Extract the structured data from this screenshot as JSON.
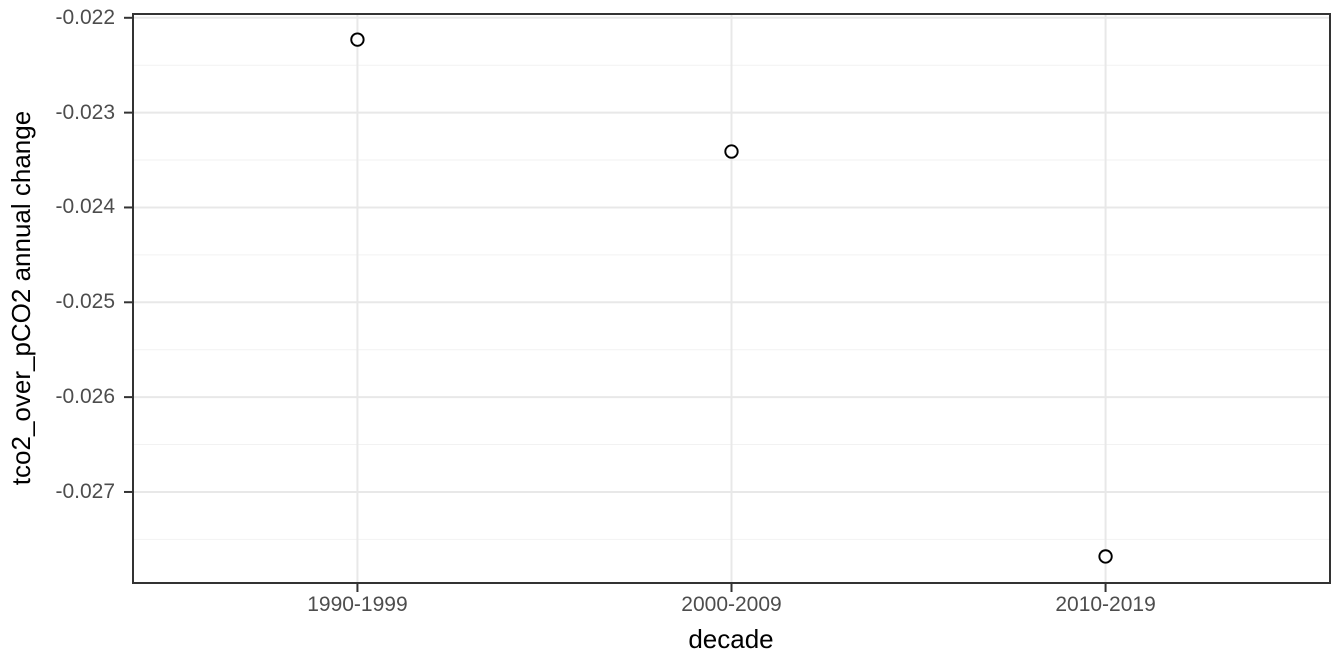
{
  "chart_data": {
    "type": "scatter",
    "title": "",
    "xlabel": "decade",
    "ylabel": "tco2_over_pCO2 annual change",
    "categories": [
      "1990-1999",
      "2000-2009",
      "2010-2019"
    ],
    "values": [
      -0.02223,
      -0.02341,
      -0.02768
    ],
    "ylim": [
      -0.02796,
      -0.02196
    ],
    "yticks": [
      -0.022,
      -0.023,
      -0.024,
      -0.025,
      -0.026,
      -0.027
    ],
    "ytick_labels": [
      "-0.022",
      "-0.023",
      "-0.024",
      "-0.025",
      "-0.026",
      "-0.027"
    ],
    "yticks_minor": [
      -0.0225,
      -0.0235,
      -0.0245,
      -0.0255,
      -0.0265,
      -0.0275
    ],
    "grid": "major-and-minor",
    "legend": "none",
    "marker": "open-circle",
    "theme": "ggplot2-bw",
    "colors": {
      "background": "#ffffff",
      "panel_background": "#ffffff",
      "panel_border": "#333333",
      "grid_major": "#e8e8e8",
      "grid_minor": "#f2f2f2",
      "axis_tick": "#333333",
      "tick_label": "#4d4d4d",
      "axis_title": "#000000",
      "point_stroke": "#000000",
      "point_fill": "#ffffff"
    }
  }
}
